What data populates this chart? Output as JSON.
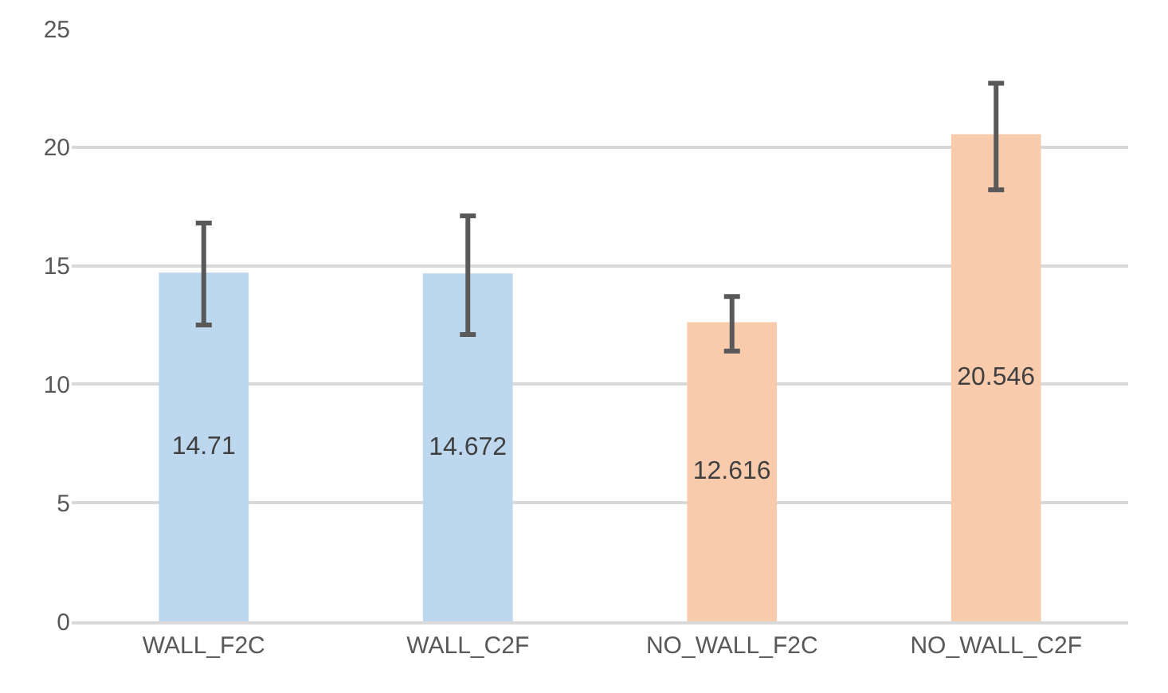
{
  "chart_data": {
    "type": "bar",
    "categories": [
      "WALL_F2C",
      "WALL_C2F",
      "NO_WALL_F2C",
      "NO_WALL_C2F"
    ],
    "values": [
      14.71,
      14.672,
      12.616,
      20.546
    ],
    "colors": [
      "#bdd7ee",
      "#bdd7ee",
      "#f8cbad",
      "#f8cbad"
    ],
    "errors": [
      [
        12.5,
        16.8
      ],
      [
        12.1,
        17.1
      ],
      [
        11.4,
        13.7
      ],
      [
        18.2,
        22.7
      ]
    ],
    "data_labels": true,
    "ylim": [
      0,
      25
    ],
    "yticks": [
      0,
      5,
      10,
      15,
      20,
      25
    ],
    "grid": "y"
  }
}
